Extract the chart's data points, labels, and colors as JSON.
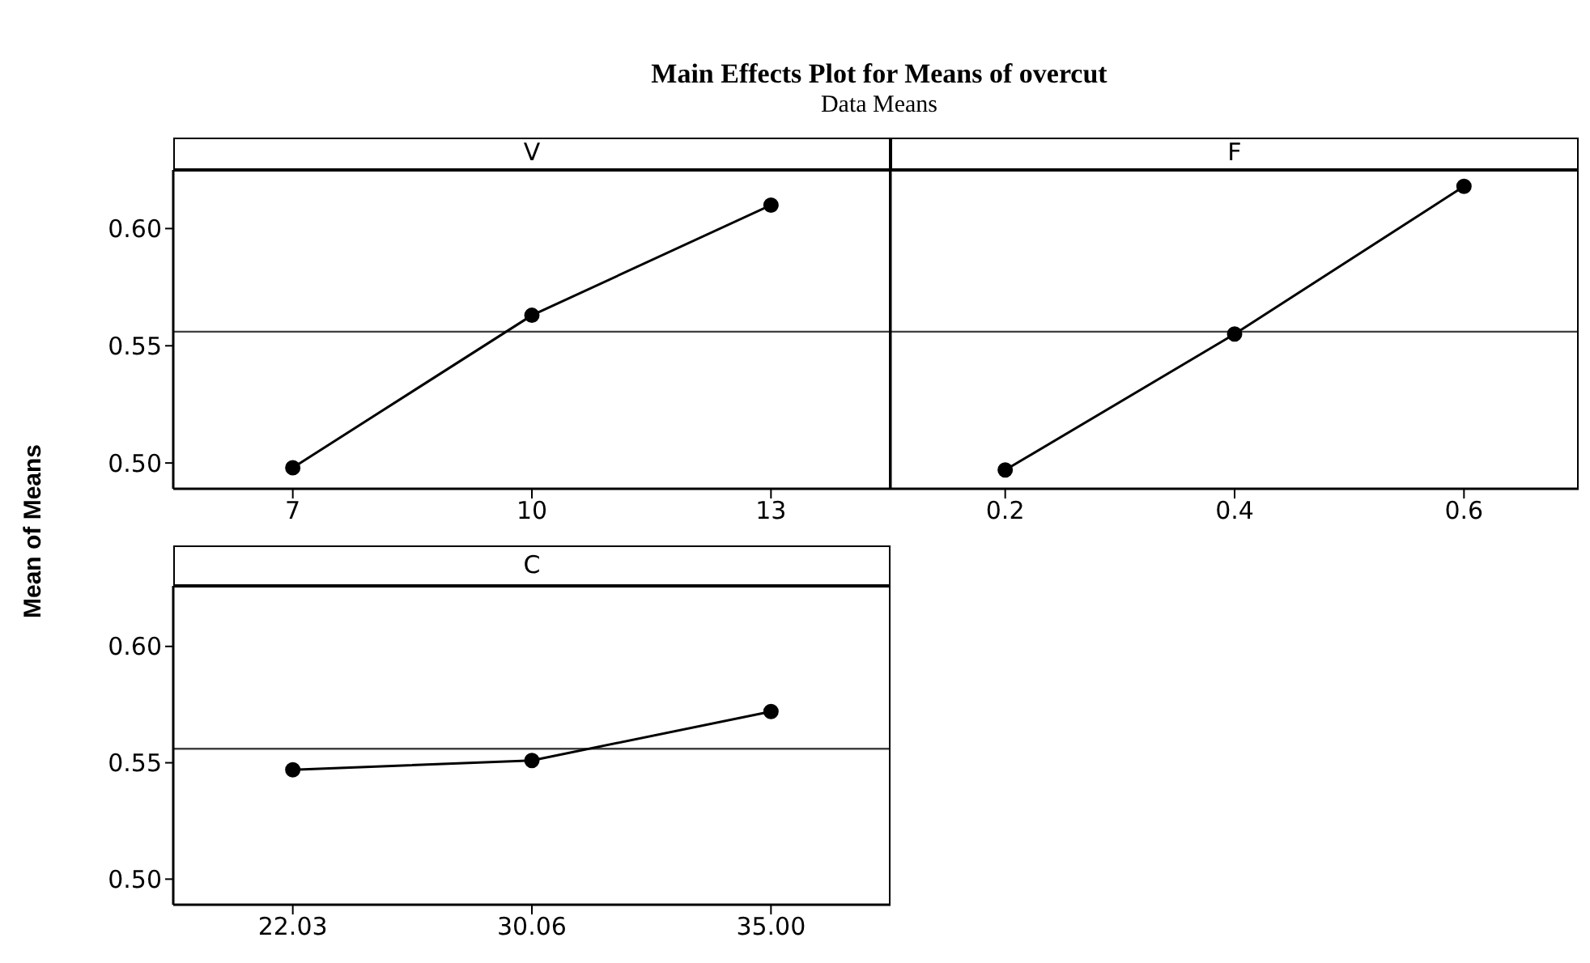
{
  "chart_data": [
    {
      "type": "line",
      "title": "V",
      "annotations": [
        "Main Effects Plot for Means of overcut",
        "Data Means"
      ],
      "ylabel": "Mean of Means",
      "categories": [
        "7",
        "10",
        "13"
      ],
      "series": [
        {
          "color": "#000000",
          "values": [
            0.498,
            0.563,
            0.61
          ]
        }
      ],
      "ylim": [
        0.489,
        0.625
      ],
      "yticks": [
        {
          "value": 0.5,
          "label": "0.50"
        },
        {
          "value": 0.55,
          "label": "0.55"
        },
        {
          "value": 0.6,
          "label": "0.60"
        }
      ],
      "ref_lines": [
        {
          "axis": "y",
          "value": 0.556,
          "color": "#404040"
        }
      ],
      "marker": "circle",
      "grid": false
    },
    {
      "type": "line",
      "title": "F",
      "categories": [
        "0.2",
        "0.4",
        "0.6"
      ],
      "series": [
        {
          "color": "#000000",
          "values": [
            0.497,
            0.555,
            0.618
          ]
        }
      ],
      "ylim": [
        0.489,
        0.625
      ],
      "ref_lines": [
        {
          "axis": "y",
          "value": 0.556,
          "color": "#404040"
        }
      ],
      "marker": "circle",
      "grid": false,
      "tick_labels": "x"
    },
    {
      "type": "line",
      "title": "C",
      "categories": [
        "22.03",
        "30.06",
        "35.00"
      ],
      "series": [
        {
          "color": "#000000",
          "values": [
            0.547,
            0.551,
            0.572
          ]
        }
      ],
      "ylim": [
        0.489,
        0.626
      ],
      "yticks": [
        {
          "value": 0.5,
          "label": "0.50"
        },
        {
          "value": 0.55,
          "label": "0.55"
        },
        {
          "value": 0.6,
          "label": "0.60"
        }
      ],
      "ref_lines": [
        {
          "axis": "y",
          "value": 0.556,
          "color": "#404040"
        }
      ],
      "marker": "circle",
      "grid": false
    }
  ]
}
